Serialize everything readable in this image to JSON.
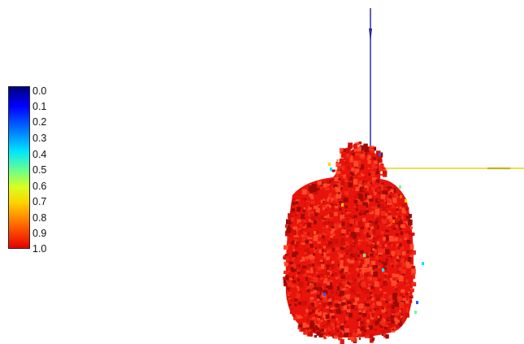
{
  "colormap": {
    "labels": [
      "0.0",
      "0.1",
      "0.2",
      "0.3",
      "0.4",
      "0.5",
      "0.6",
      "0.7",
      "0.8",
      "0.9",
      "1.0"
    ],
    "stops": [
      "#00007f",
      "#0000ff",
      "#0080ff",
      "#00e5ff",
      "#6bff8a",
      "#d8ff20",
      "#ffd200",
      "#ff6400",
      "#e60000"
    ]
  },
  "scene": {
    "body_color": "#e8140c",
    "body_dark": "#9c0a05",
    "body_light": "#ff4a2a",
    "vertical_axis_color": "#3a3aa8",
    "horizontal_axis_color": "#e6d21a"
  }
}
